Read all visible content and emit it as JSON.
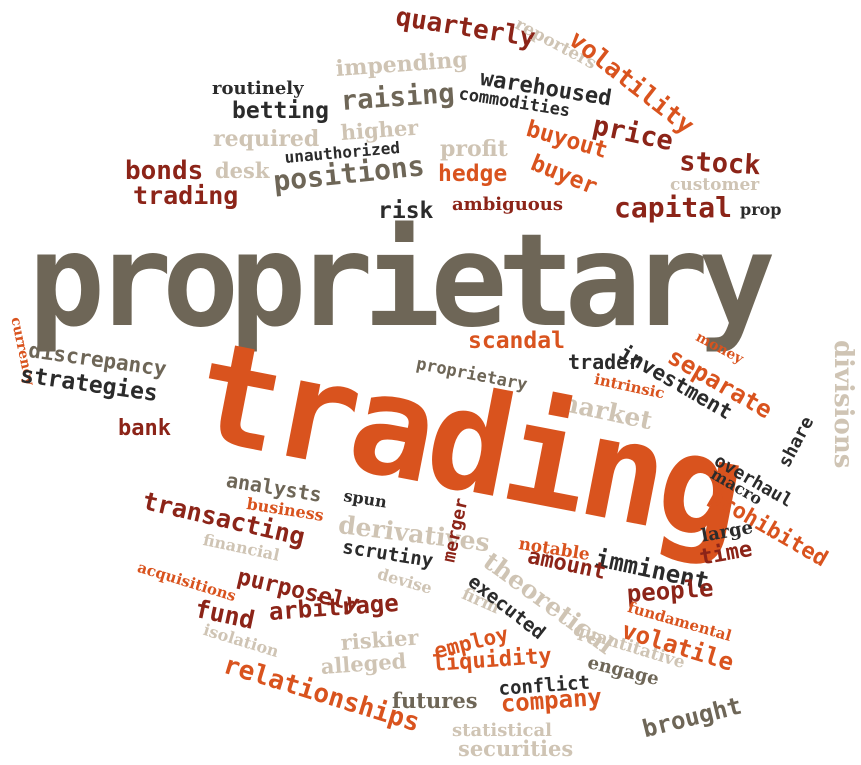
{
  "title": "Word cloud",
  "colors": {
    "dark_red": "#8c2418",
    "orange": "#d9531e",
    "black": "#2b2b2b",
    "taupe": "#6e6657",
    "light_beige": "#cfc4b4",
    "mid_beige": "#a89b88"
  },
  "words": {
    "quarterly": "quarterly",
    "reporters": "reporters",
    "volatility": "volatility",
    "routinely": "routinely",
    "impending": "impending",
    "warehoused": "warehoused",
    "commodities": "commodities",
    "betting": "betting",
    "raising": "raising",
    "price": "price",
    "buyout": "buyout",
    "required": "required",
    "higher": "higher",
    "profit": "profit",
    "stock": "stock",
    "bonds": "bonds",
    "desk": "desk",
    "unauthorized": "unauthorized",
    "buyer": "buyer",
    "customer": "customer",
    "trading_small": "trading",
    "positions": "positions",
    "hedge": "hedge",
    "capital": "capital",
    "prop": "prop",
    "risk": "risk",
    "ambiguous": "ambiguous",
    "proprietary_big": "proprietary",
    "currency": "currency",
    "discrepancy": "discrepancy",
    "scandal": "scandal",
    "money": "money",
    "separate": "separate",
    "trader": "trader",
    "investment": "investment",
    "divisions": "divisions",
    "strategies": "strategies",
    "proprietary_small": "proprietary",
    "intrinsic": "intrinsic",
    "market": "market",
    "bank": "bank",
    "share": "share",
    "trading_big": "trading",
    "overhaul": "overhaul",
    "macro": "macro",
    "analysts": "analysts",
    "spun": "spun",
    "business": "business",
    "prohibited": "prohibited",
    "transacting": "transacting",
    "derivatives": "derivatives",
    "large": "large",
    "financial": "financial",
    "scrutiny": "scrutiny",
    "notable": "notable",
    "imminent": "imminent",
    "time": "time",
    "acquisitions": "acquisitions",
    "purposely": "purposely",
    "devise": "devise",
    "merger": "merger",
    "theoretical": "theoretical",
    "amount": "amount",
    "people": "people",
    "fund": "fund",
    "arbitrage": "arbitrage",
    "firm": "firm",
    "executed": "executed",
    "fundamental": "fundamental",
    "isolation": "isolation",
    "riskier": "riskier",
    "employ": "employ",
    "quantitative": "quantitative",
    "volatile": "volatile",
    "alleged": "alleged",
    "liquidity": "liquidity",
    "engage": "engage",
    "relationships": "relationships",
    "futures": "futures",
    "conflict": "conflict",
    "company": "company",
    "brought": "brought",
    "statistical": "statistical",
    "securities": "securities"
  }
}
